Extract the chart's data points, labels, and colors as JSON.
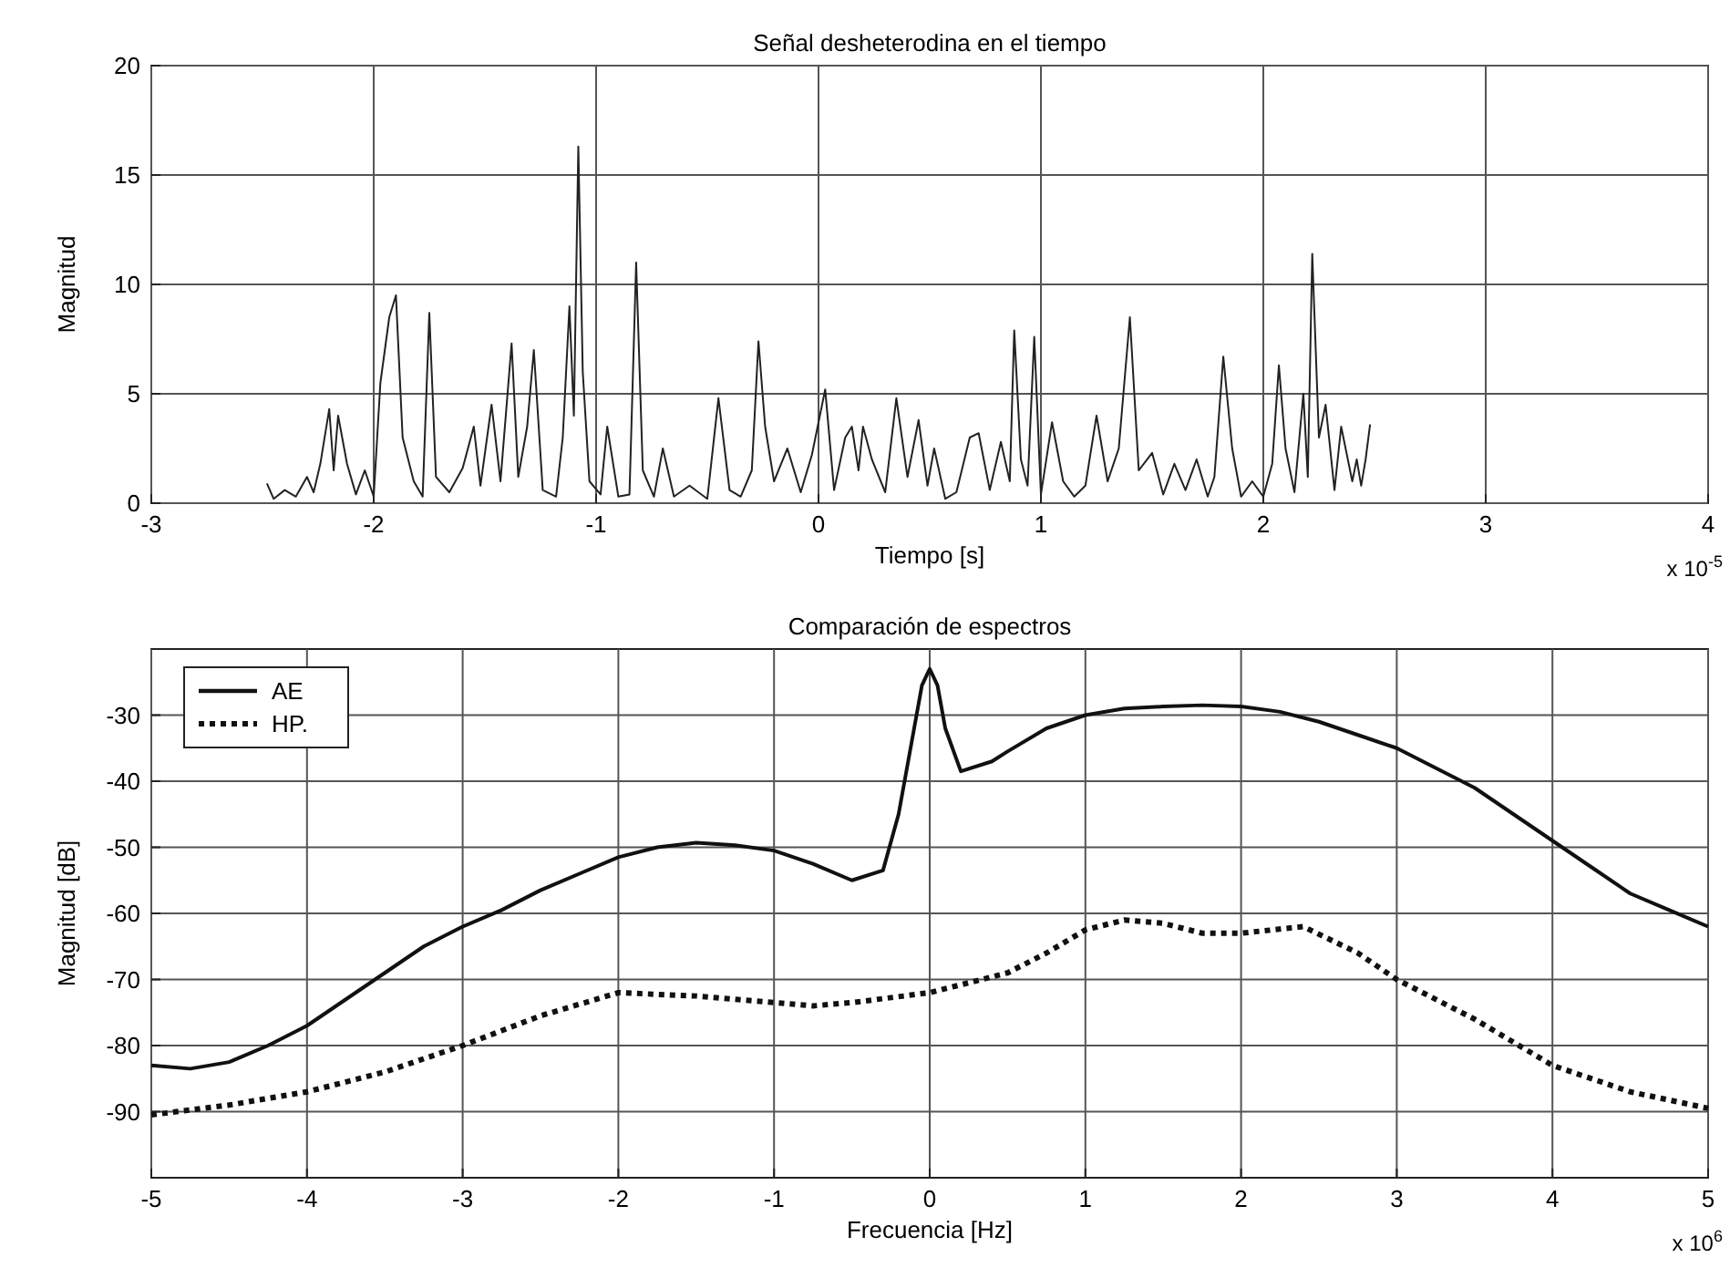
{
  "chart_data": [
    {
      "type": "line",
      "title": "Señal desheterodina en el tiempo",
      "xlabel": "Tiempo [s]",
      "ylabel": "Magnitud",
      "annotations": [
        "x 10$^{-5}$"
      ],
      "xlim": [
        -3,
        4
      ],
      "ylim": [
        0,
        20
      ],
      "xticks": [
        -3,
        -2,
        -1,
        0,
        1,
        2,
        3,
        4
      ],
      "yticks": [
        0,
        5,
        10,
        15,
        20
      ],
      "grid": true,
      "legend": false,
      "line_style": "solid",
      "series": [
        {
          "color": "#222222",
          "x": [
            -2.48,
            -2.45,
            -2.4,
            -2.35,
            -2.3,
            -2.27,
            -2.24,
            -2.2,
            -2.18,
            -2.16,
            -2.12,
            -2.08,
            -2.04,
            -2.0,
            -1.97,
            -1.93,
            -1.9,
            -1.87,
            -1.82,
            -1.78,
            -1.75,
            -1.72,
            -1.66,
            -1.6,
            -1.55,
            -1.52,
            -1.47,
            -1.43,
            -1.38,
            -1.35,
            -1.31,
            -1.28,
            -1.24,
            -1.18,
            -1.15,
            -1.12,
            -1.1,
            -1.08,
            -1.06,
            -1.03,
            -0.98,
            -0.95,
            -0.9,
            -0.85,
            -0.82,
            -0.79,
            -0.74,
            -0.7,
            -0.65,
            -0.58,
            -0.5,
            -0.45,
            -0.4,
            -0.35,
            -0.3,
            -0.27,
            -0.24,
            -0.2,
            -0.14,
            -0.08,
            -0.03,
            0.03,
            0.07,
            0.12,
            0.15,
            0.18,
            0.2,
            0.24,
            0.3,
            0.35,
            0.4,
            0.45,
            0.49,
            0.52,
            0.57,
            0.62,
            0.68,
            0.72,
            0.77,
            0.82,
            0.86,
            0.88,
            0.91,
            0.94,
            0.97,
            1.0,
            1.05,
            1.1,
            1.15,
            1.2,
            1.25,
            1.3,
            1.35,
            1.4,
            1.44,
            1.5,
            1.55,
            1.6,
            1.65,
            1.7,
            1.75,
            1.78,
            1.82,
            1.86,
            1.9,
            1.95,
            2.0,
            2.04,
            2.07,
            2.1,
            2.14,
            2.18,
            2.2,
            2.22,
            2.25,
            2.28,
            2.32,
            2.35,
            2.4,
            2.42,
            2.44,
            2.46,
            2.48
          ],
          "values": [
            0.9,
            0.2,
            0.6,
            0.3,
            1.2,
            0.5,
            1.8,
            4.3,
            1.5,
            4.0,
            1.8,
            0.4,
            1.5,
            0.3,
            5.5,
            8.5,
            9.5,
            3.0,
            1.0,
            0.3,
            8.7,
            1.2,
            0.5,
            1.6,
            3.5,
            0.8,
            4.5,
            1.0,
            7.3,
            1.2,
            3.5,
            7.0,
            0.6,
            0.3,
            3.0,
            9.0,
            4.0,
            16.3,
            6.0,
            1.0,
            0.4,
            3.5,
            0.3,
            0.4,
            11.0,
            1.5,
            0.3,
            2.5,
            0.3,
            0.8,
            0.2,
            4.8,
            0.6,
            0.3,
            1.5,
            7.4,
            3.5,
            1.0,
            2.5,
            0.5,
            2.2,
            5.2,
            0.6,
            3.0,
            3.5,
            1.5,
            3.5,
            2.0,
            0.5,
            4.8,
            1.2,
            3.8,
            0.8,
            2.5,
            0.2,
            0.5,
            3.0,
            3.2,
            0.6,
            2.8,
            1.0,
            7.9,
            2.0,
            0.8,
            7.6,
            0.4,
            3.7,
            1.0,
            0.3,
            0.8,
            4.0,
            1.0,
            2.5,
            8.5,
            1.5,
            2.3,
            0.4,
            1.8,
            0.6,
            2.0,
            0.3,
            1.2,
            6.7,
            2.5,
            0.3,
            1.0,
            0.3,
            1.8,
            6.3,
            2.5,
            0.5,
            5.0,
            1.2,
            11.4,
            3.0,
            4.5,
            0.6,
            3.5,
            1.0,
            2.0,
            0.8,
            2.0,
            3.6
          ]
        }
      ]
    },
    {
      "type": "line",
      "title": "Comparación de espectros",
      "xlabel": "Frecuencia [Hz]",
      "ylabel": "Magnitud [dB]",
      "annotations": [
        "x 10$^{6}$"
      ],
      "xlim": [
        -5,
        5
      ],
      "ylim": [
        -100,
        -20
      ],
      "xticks": [
        -5,
        -4,
        -3,
        -2,
        -1,
        0,
        1,
        2,
        3,
        4,
        5
      ],
      "yticks": [
        -90,
        -80,
        -70,
        -60,
        -50,
        -40,
        -30
      ],
      "grid": true,
      "legend": "top left",
      "series": [
        {
          "name": "AE",
          "color": "#111111",
          "line_style": "solid",
          "x": [
            -5,
            -4.75,
            -4.5,
            -4.25,
            -4,
            -3.75,
            -3.5,
            -3.25,
            -3,
            -2.75,
            -2.5,
            -2.25,
            -2,
            -1.75,
            -1.5,
            -1.25,
            -1,
            -0.75,
            -0.5,
            -0.3,
            -0.2,
            -0.1,
            -0.05,
            0,
            0.05,
            0.1,
            0.2,
            0.4,
            0.5,
            0.75,
            1,
            1.25,
            1.5,
            1.75,
            2,
            2.25,
            2.5,
            2.75,
            3,
            3.25,
            3.5,
            3.75,
            4,
            4.25,
            4.5,
            4.75,
            5
          ],
          "values": [
            -83,
            -83.5,
            -82.5,
            -80,
            -77,
            -73,
            -69,
            -65,
            -62,
            -59.5,
            -56.5,
            -54,
            -51.5,
            -50,
            -49.3,
            -49.7,
            -50.5,
            -52.5,
            -55,
            -53.5,
            -45,
            -32,
            -25.5,
            -23,
            -25.5,
            -32,
            -38.5,
            -37,
            -35.5,
            -32,
            -30,
            -29,
            -28.7,
            -28.5,
            -28.7,
            -29.5,
            -31,
            -33,
            -35,
            -38,
            -41,
            -45,
            -49,
            -53,
            -57,
            -59.5,
            -62
          ]
        },
        {
          "name": "HP.",
          "color": "#111111",
          "line_style": "dotted",
          "x": [
            -5,
            -4.5,
            -4,
            -3.5,
            -3,
            -2.5,
            -2,
            -1.5,
            -1,
            -0.75,
            -0.5,
            0,
            0.5,
            0.75,
            1,
            1.25,
            1.5,
            1.75,
            2,
            2.4,
            2.75,
            3,
            3.5,
            4,
            4.5,
            5
          ],
          "values": [
            -90.5,
            -89,
            -87,
            -84,
            -80,
            -75.5,
            -72,
            -72.5,
            -73.5,
            -74,
            -73.5,
            -72,
            -69,
            -66,
            -62.5,
            -61,
            -61.5,
            -63,
            -63,
            -62,
            -66,
            -70,
            -76,
            -83,
            -87,
            -89.5
          ]
        }
      ]
    }
  ]
}
